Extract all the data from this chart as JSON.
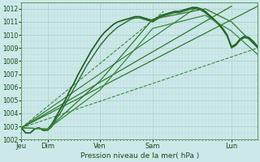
{
  "xlabel": "Pression niveau de la mer( hPa )",
  "background_color": "#cce8e8",
  "plot_bg_color": "#cce8e8",
  "grid_color_major": "#aacccc",
  "grid_color_minor": "#bbdddd",
  "ylim": [
    1002,
    1012.5
  ],
  "yticks": [
    1002,
    1003,
    1004,
    1005,
    1006,
    1007,
    1008,
    1009,
    1010,
    1011,
    1012
  ],
  "day_labels": [
    "Jeu",
    "Dim",
    "Ven",
    "Sam",
    "Lun"
  ],
  "day_positions": [
    0,
    24,
    72,
    120,
    192
  ],
  "total_hours": 216,
  "line_dark": "#1a5c1a",
  "line_mid": "#2d7a2d",
  "line_light": "#4a9a4a",
  "curves": [
    {
      "x": [
        0,
        4,
        8,
        12,
        16,
        20,
        24,
        28,
        32,
        36,
        40,
        44,
        48,
        52,
        56,
        60,
        64,
        68,
        72,
        76,
        80,
        84,
        88,
        92,
        96,
        100,
        104,
        108,
        112,
        116,
        120,
        124,
        128,
        132,
        136,
        140,
        144,
        148,
        152,
        156,
        160,
        164,
        168,
        172,
        176,
        180,
        184,
        188,
        192,
        196,
        200,
        204,
        208,
        212,
        216
      ],
      "y": [
        1002.9,
        1002.5,
        1002.5,
        1002.8,
        1002.9,
        1002.7,
        1002.8,
        1003.2,
        1003.8,
        1004.4,
        1005.0,
        1005.7,
        1006.3,
        1007.0,
        1007.6,
        1008.2,
        1008.8,
        1009.3,
        1009.8,
        1010.2,
        1010.5,
        1010.8,
        1011.0,
        1011.1,
        1011.2,
        1011.3,
        1011.4,
        1011.4,
        1011.3,
        1011.2,
        1011.1,
        1011.3,
        1011.5,
        1011.6,
        1011.7,
        1011.8,
        1011.8,
        1011.9,
        1012.0,
        1012.1,
        1012.1,
        1012.0,
        1011.8,
        1011.5,
        1011.2,
        1010.9,
        1010.5,
        1010.0,
        1009.1,
        1009.3,
        1009.7,
        1009.9,
        1009.8,
        1009.5,
        1009.1
      ],
      "color": "#1a5c1a",
      "lw": 1.2
    },
    {
      "x": [
        0,
        4,
        8,
        12,
        16,
        20,
        24,
        28,
        32,
        36,
        40,
        44,
        48,
        52,
        56,
        60,
        64,
        68,
        72,
        76,
        80,
        84,
        88,
        92,
        96,
        100,
        104,
        108,
        112,
        116,
        120,
        124,
        128,
        132,
        136,
        140,
        144,
        148,
        152,
        156,
        160,
        164,
        168,
        172,
        176,
        180,
        184,
        188,
        192,
        196,
        200,
        204,
        208,
        212,
        216
      ],
      "y": [
        1002.9,
        1002.5,
        1002.5,
        1002.8,
        1002.9,
        1002.7,
        1002.7,
        1003.0,
        1003.6,
        1004.1,
        1004.7,
        1005.3,
        1005.9,
        1006.5,
        1007.1,
        1007.7,
        1008.2,
        1008.7,
        1009.2,
        1009.6,
        1010.0,
        1010.3,
        1010.6,
        1010.8,
        1011.0,
        1011.2,
        1011.3,
        1011.3,
        1011.2,
        1011.1,
        1011.0,
        1011.2,
        1011.4,
        1011.5,
        1011.6,
        1011.7,
        1011.7,
        1011.8,
        1011.9,
        1012.0,
        1012.0,
        1011.9,
        1011.7,
        1011.4,
        1011.1,
        1010.8,
        1010.4,
        1009.9,
        1009.0,
        1009.2,
        1009.6,
        1009.8,
        1009.7,
        1009.4,
        1009.0
      ],
      "color": "#2a6a2a",
      "lw": 1.0
    },
    {
      "x": [
        0,
        24,
        72,
        120,
        168,
        192,
        216
      ],
      "y": [
        1002.9,
        1002.8,
        1006.5,
        1011.2,
        1012.0,
        1011.0,
        1009.0
      ],
      "color": "#2d7a2d",
      "lw": 0.9
    },
    {
      "x": [
        0,
        24,
        72,
        120,
        168,
        192,
        216
      ],
      "y": [
        1002.9,
        1002.8,
        1005.8,
        1010.5,
        1011.5,
        1010.3,
        1008.5
      ],
      "color": "#3a8a3a",
      "lw": 0.9
    }
  ],
  "straight_lines": [
    {
      "x": [
        0,
        216
      ],
      "y": [
        1002.9,
        1012.2
      ],
      "color": "#2d7a2d",
      "lw": 0.9,
      "ls": "solid"
    },
    {
      "x": [
        0,
        192
      ],
      "y": [
        1002.9,
        1012.2
      ],
      "color": "#2d7a2d",
      "lw": 0.9,
      "ls": "solid"
    },
    {
      "x": [
        0,
        160
      ],
      "y": [
        1002.9,
        1012.1
      ],
      "color": "#2d7a2d",
      "lw": 0.8,
      "ls": "solid"
    },
    {
      "x": [
        0,
        130
      ],
      "y": [
        1002.9,
        1011.8
      ],
      "color": "#3a8a3a",
      "lw": 0.8,
      "ls": "dashed"
    },
    {
      "x": [
        0,
        216
      ],
      "y": [
        1002.9,
        1009.0
      ],
      "color": "#3a8a3a",
      "lw": 0.8,
      "ls": "dashed"
    }
  ]
}
